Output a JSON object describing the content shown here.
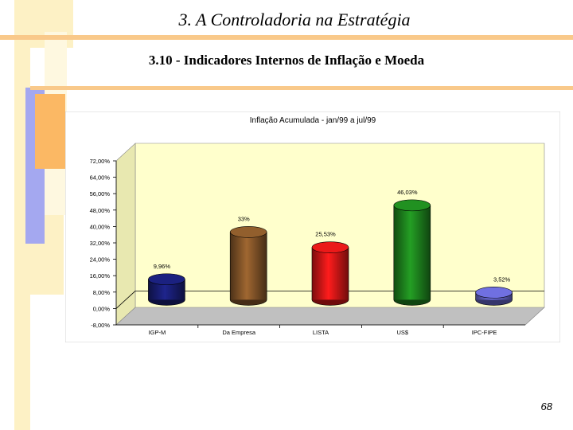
{
  "slide": {
    "title": "3.  A Controladoria na Estratégia",
    "subtitle": "3.10 - Indicadores Internos de Inflação e Moeda",
    "page_number": "68"
  },
  "colors": {
    "title_bar": "#f9c98a",
    "deco_pale_yellow": "#fdf1c5",
    "deco_orange": "#fbb864",
    "deco_blue": "#a4a8f0",
    "plot_wall": "#ffffcc"
  },
  "chart_data": {
    "type": "bar",
    "title": "Inflação Acumulada - jan/99 a jul/99",
    "categories": [
      "IGP-M",
      "Da Empresa",
      "LISTA",
      "US$",
      "IPC-FIPE"
    ],
    "values": [
      9.96,
      33,
      25.53,
      46.03,
      3.52
    ],
    "value_labels": [
      "9,96%",
      "33%",
      "25,53%",
      "46,03%",
      "3,52%"
    ],
    "bar_colors": [
      "#1a1f7a",
      "#8b5a2b",
      "#e01818",
      "#1f8a1f",
      "#6b6bd6"
    ],
    "y_ticks": [
      "72,00%",
      "64,00%",
      "56,00%",
      "48,00%",
      "40,00%",
      "32,00%",
      "24,00%",
      "16,00%",
      "8,00%",
      "0,00%",
      "-8,00%"
    ],
    "ylim": [
      -8,
      72
    ],
    "grid": false,
    "legend": "none"
  }
}
